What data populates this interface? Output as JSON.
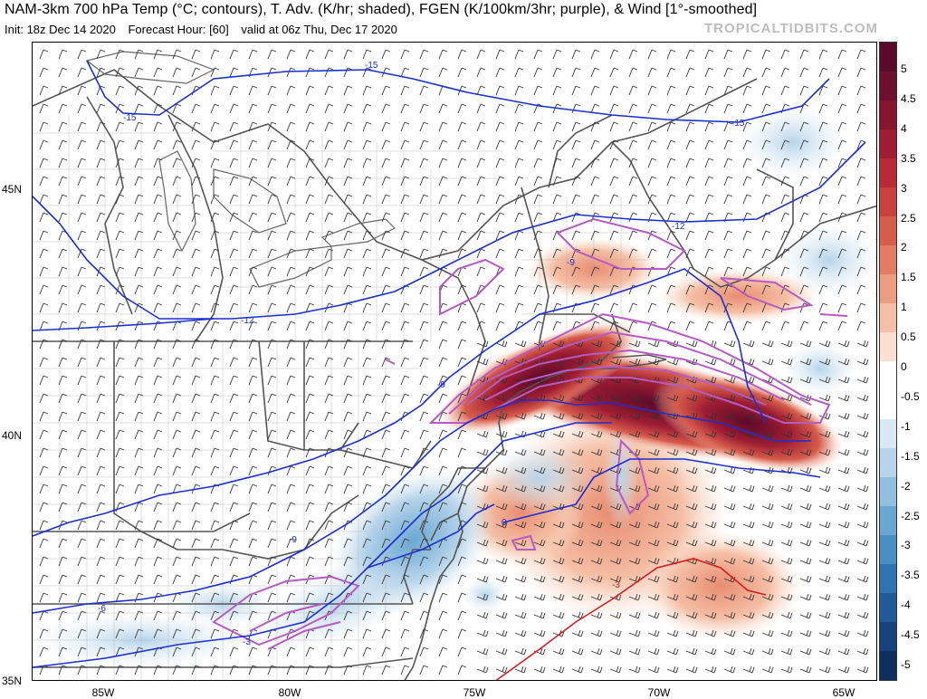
{
  "header": {
    "title": "NAM-3km 700 hPa Temp (°C; contours), T. Adv. (K/hr; shaded), FGEN (K/100km/3hr; purple), & Wind [1°-smoothed]",
    "init": "Init: 18z Dec 14 2020",
    "forecast_hour": "Forecast Hour: [60]",
    "valid": "valid at 06z Thu, Dec 17 2020",
    "brand": "TROPICALTIDBITS.COM"
  },
  "map": {
    "lat_labels": [
      "45N",
      "40N",
      "35N"
    ],
    "lon_labels": [
      "85W",
      "80W",
      "75W",
      "70W",
      "65W"
    ],
    "contour_labels": [
      "-15",
      "-15",
      "-15",
      "-12",
      "-12",
      "-9",
      "-9",
      "-9",
      "-6",
      "-3",
      "0",
      "-3"
    ]
  },
  "colorbar": {
    "ticks": [
      "5",
      "4.5",
      "4",
      "3.5",
      "3",
      "2.5",
      "2",
      "1.5",
      "1",
      "0.5",
      "0",
      "-0.5",
      "-1",
      "-1.5",
      "-2",
      "-2.5",
      "-3",
      "-3.5",
      "-4",
      "-4.5",
      "-5"
    ],
    "colors": [
      "#5a0a2a",
      "#6e0f2f",
      "#861630",
      "#9e1d33",
      "#b72a36",
      "#c9413f",
      "#d65c4c",
      "#e27c63",
      "#ec9c80",
      "#f5bfa5",
      "#fbe0d2",
      "#ffffff",
      "#ffffff",
      "#d9e8f3",
      "#b7d4ea",
      "#92bfe0",
      "#6aa7d3",
      "#4a8fc4",
      "#2f74b0",
      "#215a97",
      "#18437a",
      "#0f2f5e"
    ]
  }
}
